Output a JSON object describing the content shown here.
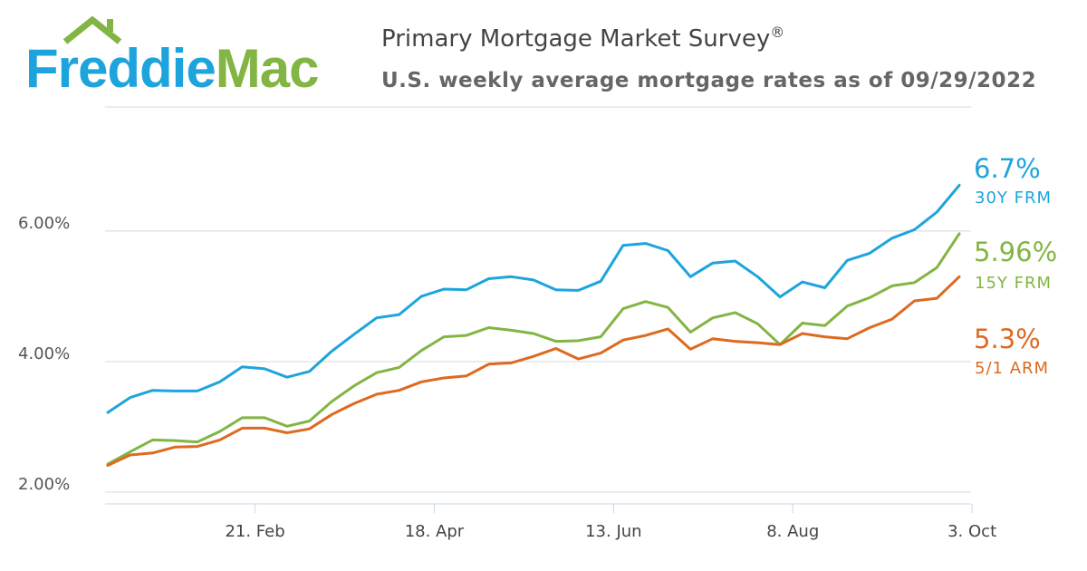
{
  "brand": {
    "logo_text": "FreddieMac",
    "logo_part1": "Freddie",
    "logo_part2": "Mac",
    "color_blue": "#1ea4dc",
    "color_green": "#82b543"
  },
  "header": {
    "title": "Primary Mortgage Market Survey",
    "title_mark": "®",
    "subtitle": "U.S. weekly average mortgage rates as of 09/29/2022"
  },
  "chart_data": {
    "type": "line",
    "title": "Primary Mortgage Market Survey®",
    "subtitle": "U.S. weekly average mortgage rates as of 09/29/2022",
    "x": [
      "2022-01-06",
      "2022-01-13",
      "2022-01-20",
      "2022-01-27",
      "2022-02-03",
      "2022-02-10",
      "2022-02-17",
      "2022-02-24",
      "2022-03-03",
      "2022-03-10",
      "2022-03-17",
      "2022-03-24",
      "2022-03-31",
      "2022-04-07",
      "2022-04-14",
      "2022-04-21",
      "2022-04-28",
      "2022-05-05",
      "2022-05-12",
      "2022-05-19",
      "2022-05-26",
      "2022-06-02",
      "2022-06-09",
      "2022-06-16",
      "2022-06-23",
      "2022-06-30",
      "2022-07-07",
      "2022-07-14",
      "2022-07-21",
      "2022-07-28",
      "2022-08-04",
      "2022-08-11",
      "2022-08-18",
      "2022-08-25",
      "2022-09-01",
      "2022-09-08",
      "2022-09-15",
      "2022-09-22",
      "2022-09-29"
    ],
    "x_ticks": [
      "21. Feb",
      "18. Apr",
      "13. Jun",
      "8. Aug",
      "3. Oct"
    ],
    "y_ticks": [
      "2.00%",
      "4.00%",
      "6.00%"
    ],
    "ylim": [
      1.82,
      7.9
    ],
    "grid": true,
    "legend": "end-of-line labels",
    "series": [
      {
        "name": "30Y FRM",
        "end_label": "6.7%",
        "color": "#1ea4dc",
        "values": [
          3.22,
          3.45,
          3.56,
          3.55,
          3.55,
          3.69,
          3.92,
          3.89,
          3.76,
          3.85,
          4.16,
          4.42,
          4.67,
          4.72,
          5.0,
          5.11,
          5.1,
          5.27,
          5.3,
          5.25,
          5.1,
          5.09,
          5.23,
          5.78,
          5.81,
          5.7,
          5.3,
          5.51,
          5.54,
          5.3,
          4.99,
          5.22,
          5.13,
          5.55,
          5.66,
          5.89,
          6.02,
          6.29,
          6.7
        ]
      },
      {
        "name": "15Y FRM",
        "end_label": "5.96%",
        "color": "#82b543",
        "values": [
          2.43,
          2.62,
          2.8,
          2.79,
          2.77,
          2.93,
          3.14,
          3.14,
          3.01,
          3.09,
          3.39,
          3.63,
          3.83,
          3.91,
          4.17,
          4.38,
          4.4,
          4.52,
          4.48,
          4.43,
          4.31,
          4.32,
          4.38,
          4.81,
          4.92,
          4.83,
          4.45,
          4.67,
          4.75,
          4.58,
          4.26,
          4.59,
          4.55,
          4.85,
          4.98,
          5.16,
          5.21,
          5.44,
          5.96
        ]
      },
      {
        "name": "5/1 ARM",
        "end_label": "5.3%",
        "color": "#dd6a20",
        "values": [
          2.41,
          2.57,
          2.6,
          2.69,
          2.7,
          2.8,
          2.98,
          2.98,
          2.91,
          2.97,
          3.19,
          3.36,
          3.5,
          3.56,
          3.69,
          3.75,
          3.78,
          3.96,
          3.98,
          4.08,
          4.2,
          4.04,
          4.13,
          4.33,
          4.4,
          4.5,
          4.19,
          4.35,
          4.31,
          4.29,
          4.26,
          4.43,
          4.38,
          4.35,
          4.52,
          4.65,
          4.93,
          4.97,
          5.3
        ]
      }
    ]
  }
}
